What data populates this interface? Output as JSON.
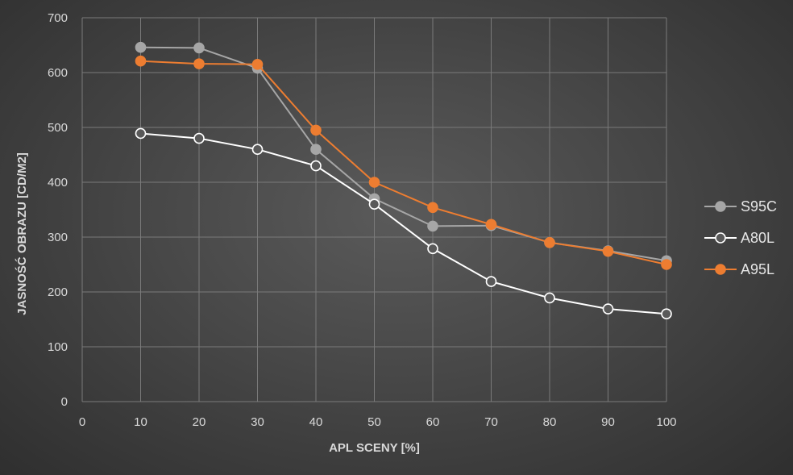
{
  "chart_data": {
    "type": "line",
    "title": "",
    "xlabel": "APL SCENY [%]",
    "ylabel": "JASNOŚĆ OBRAZU [CD/M2]",
    "xlim": [
      0,
      100
    ],
    "ylim": [
      0,
      700
    ],
    "x_ticks": [
      0,
      10,
      20,
      30,
      40,
      50,
      60,
      70,
      80,
      90,
      100
    ],
    "y_ticks": [
      0,
      100,
      200,
      300,
      400,
      500,
      600,
      700
    ],
    "grid": true,
    "legend_position": "right",
    "x": [
      10,
      20,
      30,
      40,
      50,
      60,
      70,
      80,
      90,
      100
    ],
    "series": [
      {
        "name": "S95C",
        "color": "#a6a6a6",
        "marker_fill": "#a6a6a6",
        "line_color": "#a6a6a6",
        "values": [
          646,
          645,
          608,
          460,
          370,
          320,
          321,
          290,
          275,
          257
        ]
      },
      {
        "name": "A80L",
        "color": "#ffffff",
        "marker_fill": "#595959",
        "line_color": "#ffffff",
        "values": [
          489,
          480,
          460,
          430,
          360,
          279,
          219,
          189,
          169,
          160
        ]
      },
      {
        "name": "A95L",
        "color": "#ed7d31",
        "marker_fill": "#ed7d31",
        "line_color": "#ed7d31",
        "values": [
          621,
          616,
          615,
          495,
          400,
          354,
          323,
          290,
          274,
          250
        ]
      }
    ]
  }
}
